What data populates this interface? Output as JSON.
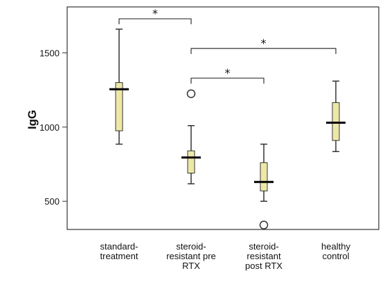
{
  "chart_data": {
    "type": "boxplot",
    "ylabel": "IgG",
    "ylim": [
      310,
      1810
    ],
    "yticks": [
      500,
      1000,
      1500
    ],
    "categories": [
      [
        "standard-",
        "treatment"
      ],
      [
        "steroid-",
        "resistant pre",
        "RTX"
      ],
      [
        "steroid-",
        "resistant",
        "post RTX"
      ],
      [
        "healthy",
        "control"
      ]
    ],
    "boxes": [
      {
        "whisker_low": 885,
        "q1": 975,
        "median": 1255,
        "q3": 1300,
        "whisker_high": 1660,
        "outliers": []
      },
      {
        "whisker_low": 618,
        "q1": 690,
        "median": 795,
        "q3": 840,
        "whisker_high": 1010,
        "outliers": [
          1225
        ]
      },
      {
        "whisker_low": 500,
        "q1": 570,
        "median": 630,
        "q3": 760,
        "whisker_high": 885,
        "outliers": [
          340
        ]
      },
      {
        "whisker_low": 835,
        "q1": 910,
        "median": 1030,
        "q3": 1165,
        "whisker_high": 1310,
        "outliers": []
      }
    ],
    "significance": [
      {
        "from": 0,
        "to": 1,
        "y": 1730,
        "label": "*"
      },
      {
        "from": 1,
        "to": 3,
        "y": 1530,
        "label": "*"
      },
      {
        "from": 1,
        "to": 2,
        "y": 1330,
        "label": "*"
      }
    ],
    "colors": {
      "box_fill": "#EEE8A8",
      "box_stroke": "#333333",
      "median": "#000000"
    }
  }
}
